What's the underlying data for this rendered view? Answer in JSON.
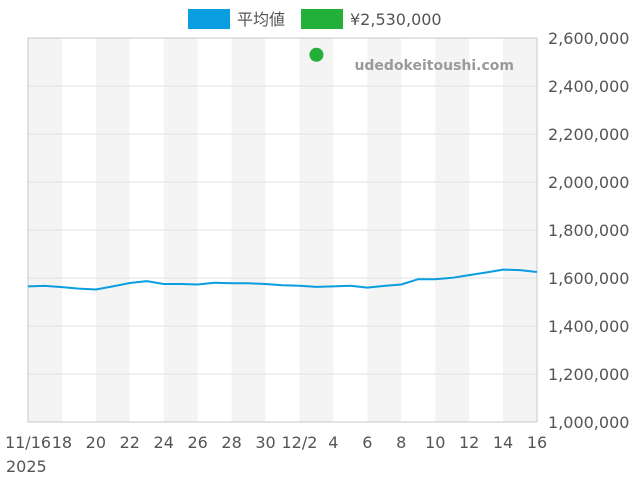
{
  "colors": {
    "line": "#0a9ee0",
    "point": "#22b03a",
    "band": "#f4f4f4",
    "grid": "#e2e2e2",
    "axis": "#c8c8c8"
  },
  "chart_data": {
    "type": "line",
    "watermark": "udedokeitoushi.com",
    "legend": {
      "position": "top-center",
      "items": [
        {
          "label": "平均値",
          "color": "#0a9ee0"
        },
        {
          "label": "¥2,530,000",
          "color": "#22b03a"
        }
      ]
    },
    "x_ticks": [
      "11/16",
      "18",
      "20",
      "22",
      "24",
      "26",
      "28",
      "30",
      "12/2",
      "4",
      "6",
      "8",
      "10",
      "12",
      "14",
      "16"
    ],
    "x_sub_label": "2025",
    "y_ticks": [
      "2,600,000",
      "2,400,000",
      "2,200,000",
      "2,000,000",
      "1,800,000",
      "1,600,000",
      "1,400,000",
      "1,200,000",
      "1,000,000"
    ],
    "ylim": [
      1000000,
      2600000
    ],
    "grid": true,
    "y_axis_side": "right",
    "x_dates": [
      "11/16",
      "11/17",
      "11/18",
      "11/19",
      "11/20",
      "11/21",
      "11/22",
      "11/23",
      "11/24",
      "11/25",
      "11/26",
      "11/27",
      "11/28",
      "11/29",
      "11/30",
      "12/1",
      "12/2",
      "12/3",
      "12/4",
      "12/5",
      "12/6",
      "12/7",
      "12/8",
      "12/9",
      "12/10",
      "12/11",
      "12/12",
      "12/13",
      "12/14",
      "12/15",
      "12/16"
    ],
    "series": [
      {
        "name": "平均値",
        "values": [
          1565000,
          1567000,
          1562000,
          1556000,
          1552000,
          1565000,
          1579000,
          1587000,
          1575000,
          1575000,
          1573000,
          1580000,
          1578000,
          1578000,
          1575000,
          1570000,
          1568000,
          1563000,
          1565000,
          1568000,
          1560000,
          1567000,
          1573000,
          1595000,
          1595000,
          1601000,
          1612000,
          1623000,
          1635000,
          1633000,
          1625000
        ]
      },
      {
        "name": "¥2,530,000",
        "points": [
          {
            "x": "12/3",
            "y": 2530000
          }
        ]
      }
    ]
  }
}
